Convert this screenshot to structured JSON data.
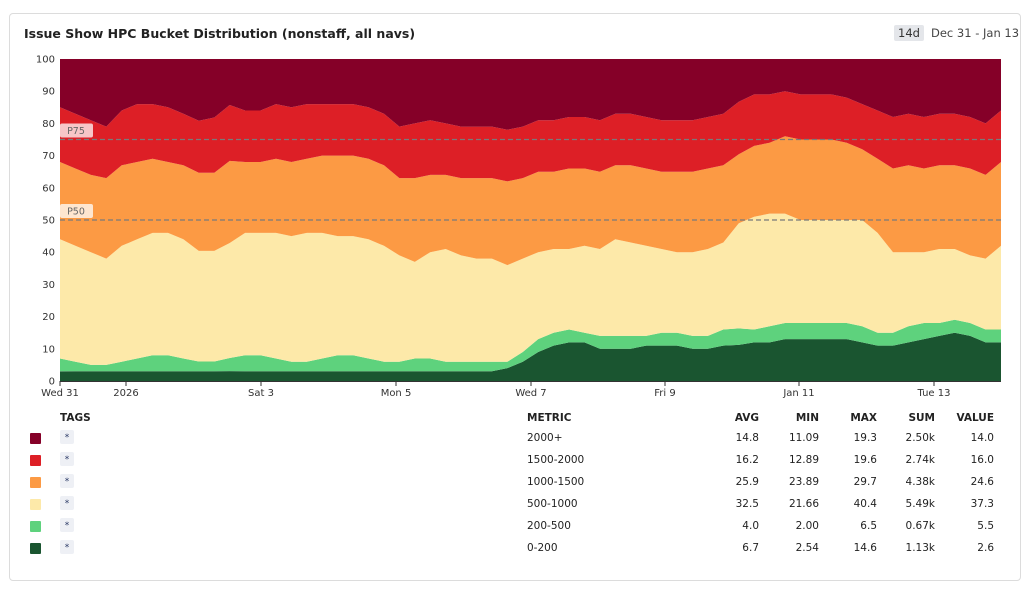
{
  "title": "Issue Show HPC Bucket Distribution (nonstaff, all navs)",
  "time_range": {
    "button": "14d",
    "label": "Dec 31 - Jan 13"
  },
  "chart_data": {
    "type": "area",
    "stacked": true,
    "ylim": [
      0,
      100
    ],
    "y_ticks": [
      "0",
      "10",
      "20",
      "30",
      "40",
      "50",
      "60",
      "70",
      "80",
      "90",
      "100"
    ],
    "x_ticks": [
      "Wed 31",
      "2026",
      "Sat 3",
      "Mon 5",
      "Wed 7",
      "Fri 9",
      "Jan 11",
      "Tue 13"
    ],
    "reference_lines": [
      {
        "label": "P75",
        "value": 75
      },
      {
        "label": "P50",
        "value": 50
      }
    ],
    "grid": false,
    "legend_position": "bottom",
    "series": [
      {
        "name": "0-200",
        "color": "#1a5530",
        "values": [
          3,
          3,
          3,
          3,
          3,
          3,
          3,
          3,
          3,
          3,
          3,
          3,
          3,
          3,
          3,
          3,
          3,
          3,
          3,
          3,
          3,
          3,
          3,
          3,
          3,
          3,
          3,
          3,
          3,
          4,
          6,
          9,
          11,
          12,
          12,
          10,
          10,
          10,
          11,
          11,
          11,
          10,
          10,
          11,
          11,
          12,
          12,
          13,
          13,
          13,
          13,
          13,
          12,
          11,
          11,
          12,
          13,
          14,
          15,
          14,
          12,
          12
        ]
      },
      {
        "name": "200-500",
        "color": "#5ed27d",
        "values": [
          4,
          3,
          2,
          2,
          3,
          4,
          5,
          5,
          4,
          3,
          3,
          4,
          5,
          5,
          4,
          3,
          3,
          4,
          5,
          5,
          4,
          3,
          3,
          4,
          4,
          3,
          3,
          3,
          3,
          2,
          3,
          4,
          4,
          4,
          3,
          4,
          4,
          4,
          3,
          4,
          4,
          4,
          4,
          5,
          5,
          4,
          5,
          5,
          5,
          5,
          5,
          5,
          5,
          4,
          4,
          5,
          5,
          4,
          4,
          4,
          4,
          4
        ]
      },
      {
        "name": "500-1000",
        "color": "#fde9a9",
        "values": [
          37,
          36,
          35,
          33,
          36,
          37,
          38,
          38,
          37,
          34,
          34,
          35,
          38,
          38,
          39,
          39,
          40,
          39,
          37,
          37,
          37,
          36,
          33,
          30,
          33,
          35,
          33,
          32,
          32,
          30,
          29,
          27,
          26,
          25,
          27,
          27,
          30,
          29,
          28,
          26,
          25,
          26,
          27,
          27,
          32,
          35,
          35,
          34,
          32,
          32,
          32,
          32,
          33,
          31,
          25,
          23,
          22,
          23,
          22,
          21,
          22,
          26
        ]
      },
      {
        "name": "1000-1500",
        "color": "#fc9a44",
        "values": [
          24,
          24,
          24,
          25,
          25,
          24,
          23,
          22,
          23,
          24,
          24,
          25,
          22,
          22,
          23,
          23,
          23,
          24,
          25,
          25,
          25,
          25,
          24,
          26,
          24,
          23,
          24,
          25,
          25,
          26,
          25,
          25,
          24,
          25,
          24,
          24,
          23,
          24,
          24,
          24,
          25,
          25,
          25,
          24,
          21,
          22,
          22,
          24,
          25,
          25,
          25,
          24,
          22,
          23,
          26,
          27,
          26,
          26,
          26,
          27,
          26,
          26
        ]
      },
      {
        "name": "1500-2000",
        "color": "#dd1f26",
        "values": [
          17,
          17,
          17,
          16,
          17,
          18,
          17,
          17,
          16,
          16,
          17,
          17,
          16,
          16,
          17,
          17,
          17,
          16,
          16,
          16,
          16,
          16,
          16,
          17,
          17,
          16,
          16,
          16,
          16,
          16,
          16,
          16,
          16,
          16,
          16,
          16,
          16,
          16,
          16,
          16,
          16,
          16,
          16,
          16,
          16,
          16,
          15,
          14,
          14,
          14,
          14,
          14,
          14,
          15,
          16,
          16,
          16,
          16,
          16,
          16,
          16,
          16
        ]
      },
      {
        "name": "2000+",
        "color": "#850028",
        "values": [
          15,
          17,
          19,
          21,
          16,
          14,
          14,
          15,
          17,
          19,
          18,
          14,
          16,
          16,
          14,
          15,
          14,
          14,
          14,
          14,
          15,
          17,
          21,
          20,
          19,
          20,
          21,
          21,
          21,
          22,
          21,
          19,
          19,
          18,
          18,
          19,
          17,
          17,
          18,
          19,
          19,
          19,
          18,
          17,
          13,
          11,
          11,
          10,
          11,
          11,
          11,
          12,
          14,
          16,
          18,
          17,
          18,
          17,
          17,
          18,
          20,
          16
        ]
      }
    ]
  },
  "legend": {
    "headers": {
      "tags": "TAGS",
      "metric": "METRIC",
      "avg": "AVG",
      "min": "MIN",
      "max": "MAX",
      "sum": "SUM",
      "value": "VALUE"
    },
    "rows": [
      {
        "color": "#850028",
        "tag": "*",
        "metric": "2000+",
        "avg": "14.8",
        "min": "11.09",
        "max": "19.3",
        "sum": "2.50k",
        "value": "14.0"
      },
      {
        "color": "#dd1f26",
        "tag": "*",
        "metric": "1500-2000",
        "avg": "16.2",
        "min": "12.89",
        "max": "19.6",
        "sum": "2.74k",
        "value": "16.0"
      },
      {
        "color": "#fc9a44",
        "tag": "*",
        "metric": "1000-1500",
        "avg": "25.9",
        "min": "23.89",
        "max": "29.7",
        "sum": "4.38k",
        "value": "24.6"
      },
      {
        "color": "#fde9a9",
        "tag": "*",
        "metric": "500-1000",
        "avg": "32.5",
        "min": "21.66",
        "max": "40.4",
        "sum": "5.49k",
        "value": "37.3"
      },
      {
        "color": "#5ed27d",
        "tag": "*",
        "metric": "200-500",
        "avg": "4.0",
        "min": "2.00",
        "max": "6.5",
        "sum": "0.67k",
        "value": "5.5"
      },
      {
        "color": "#1a5530",
        "tag": "*",
        "metric": "0-200",
        "avg": "6.7",
        "min": "2.54",
        "max": "14.6",
        "sum": "1.13k",
        "value": "2.6"
      }
    ]
  }
}
